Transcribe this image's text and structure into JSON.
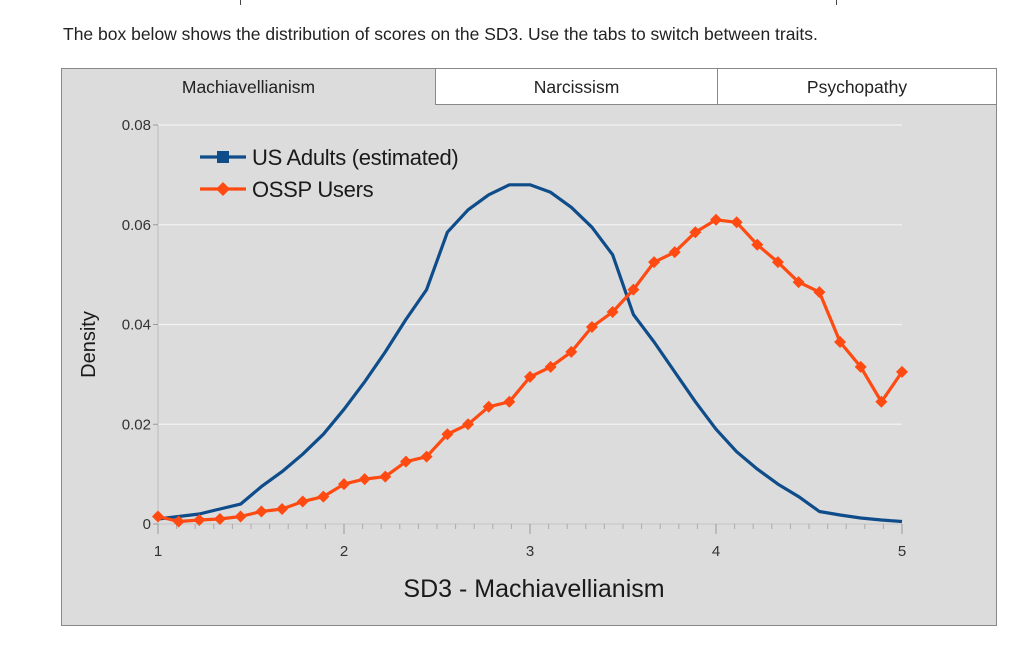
{
  "intro": "The box below shows the distribution of scores on the SD3. Use the tabs to switch between traits.",
  "tabs": [
    {
      "label": "Machiavellianism",
      "active": true
    },
    {
      "label": "Narcissism",
      "active": false
    },
    {
      "label": "Psychopathy",
      "active": false
    }
  ],
  "colors": {
    "us_adults": "#0f4c8a",
    "ossp_users": "#ff4a12",
    "plot_bg": "#dcdcdc",
    "grid": "#f2f2f2"
  },
  "chart_data": {
    "type": "line",
    "title": "",
    "xlabel": "SD3 - Machiavellianism",
    "ylabel": "Density",
    "xlim": [
      1,
      5
    ],
    "ylim": [
      0,
      0.08
    ],
    "xticks": [
      1,
      2,
      3,
      4,
      5
    ],
    "xtick_labels": [
      "1",
      "2",
      "3",
      "4",
      "5"
    ],
    "yticks": [
      0,
      0.02,
      0.04,
      0.06,
      0.08
    ],
    "ytick_labels": [
      "0",
      "0.02",
      "0.04",
      "0.06",
      "0.08"
    ],
    "grid": true,
    "legend": "top-left",
    "series": [
      {
        "name": "US Adults (estimated)",
        "marker": "none",
        "x": [
          1.0,
          1.111,
          1.222,
          1.333,
          1.444,
          1.556,
          1.667,
          1.778,
          1.889,
          2.0,
          2.111,
          2.222,
          2.333,
          2.444,
          2.556,
          2.667,
          2.778,
          2.889,
          3.0,
          3.111,
          3.222,
          3.333,
          3.444,
          3.556,
          3.667,
          3.778,
          3.889,
          4.0,
          4.111,
          4.222,
          4.333,
          4.444,
          4.556,
          4.667,
          4.778,
          4.889,
          5.0
        ],
        "values": [
          0.001,
          0.0015,
          0.002,
          0.003,
          0.004,
          0.0075,
          0.0105,
          0.014,
          0.018,
          0.023,
          0.0285,
          0.0345,
          0.041,
          0.047,
          0.0585,
          0.063,
          0.066,
          0.068,
          0.068,
          0.0665,
          0.0635,
          0.0595,
          0.054,
          0.042,
          0.0365,
          0.0305,
          0.0245,
          0.019,
          0.0145,
          0.011,
          0.008,
          0.0055,
          0.0025,
          0.0018,
          0.0012,
          0.0008,
          0.0005
        ]
      },
      {
        "name": "OSSP Users",
        "marker": "diamond",
        "x": [
          1.0,
          1.111,
          1.222,
          1.333,
          1.444,
          1.556,
          1.667,
          1.778,
          1.889,
          2.0,
          2.111,
          2.222,
          2.333,
          2.444,
          2.556,
          2.667,
          2.778,
          2.889,
          3.0,
          3.111,
          3.222,
          3.333,
          3.444,
          3.556,
          3.667,
          3.778,
          3.889,
          4.0,
          4.111,
          4.222,
          4.333,
          4.444,
          4.556,
          4.667,
          4.778,
          4.889,
          5.0
        ],
        "values": [
          0.0015,
          0.0005,
          0.0008,
          0.001,
          0.0015,
          0.0025,
          0.003,
          0.0045,
          0.0055,
          0.008,
          0.009,
          0.0095,
          0.0125,
          0.0135,
          0.018,
          0.02,
          0.0235,
          0.0245,
          0.0295,
          0.0315,
          0.0345,
          0.0395,
          0.0425,
          0.047,
          0.0525,
          0.0545,
          0.0585,
          0.061,
          0.0605,
          0.056,
          0.0525,
          0.0485,
          0.0465,
          0.0365,
          0.0315,
          0.0245,
          0.0305
        ]
      }
    ]
  }
}
